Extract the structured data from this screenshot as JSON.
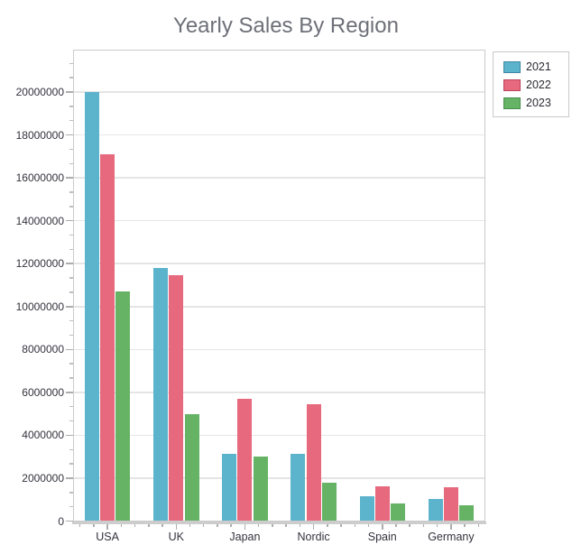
{
  "title": "Yearly Sales By Region",
  "chart_data": {
    "type": "bar",
    "title": "Yearly Sales By Region",
    "xlabel": "",
    "ylabel": "",
    "categories": [
      "USA",
      "UK",
      "Japan",
      "Nordic",
      "Spain",
      "Germany"
    ],
    "series": [
      {
        "name": "2021",
        "color": "#5CB3CC",
        "border_color": "#3E88A6",
        "values": [
          20000000,
          11800000,
          3150000,
          3150000,
          1150000,
          1050000
        ]
      },
      {
        "name": "2022",
        "color": "#E6697E",
        "border_color": "#BC4459",
        "values": [
          17100000,
          11450000,
          5700000,
          5450000,
          1600000,
          1580000
        ]
      },
      {
        "name": "2023",
        "color": "#66B366",
        "border_color": "#478F4B",
        "values": [
          10700000,
          5000000,
          3000000,
          1800000,
          800000,
          750000
        ]
      }
    ],
    "ylim": [
      0,
      22000000
    ],
    "yticks": [
      0,
      2000000,
      4000000,
      6000000,
      8000000,
      10000000,
      12000000,
      14000000,
      16000000,
      18000000,
      20000000
    ],
    "grid": true,
    "legend_position": "top-right",
    "legend_entries": [
      "2021",
      "2022",
      "2023"
    ]
  },
  "style_colors": {
    "title_text": "#6E7079",
    "axis_label_text": "#33333D",
    "gridline": "#E5E5E5",
    "plot_border": "#CBCBCB"
  }
}
